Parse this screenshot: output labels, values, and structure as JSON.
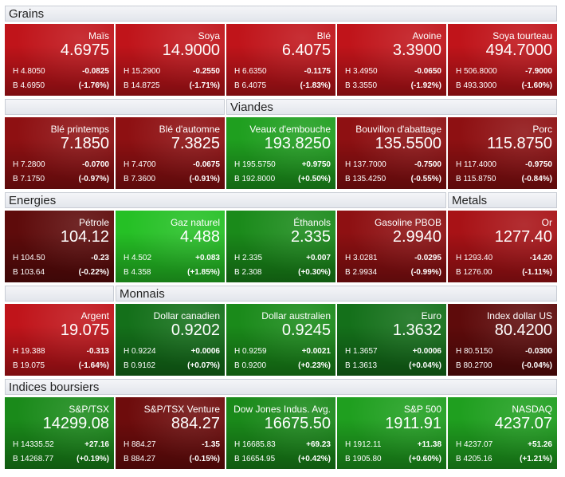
{
  "sections": [
    {
      "headers": [
        "Grains"
      ],
      "tiles": [
        {
          "name": "Maïs",
          "price": "4.6975",
          "high": "H 4.8050",
          "change": "-0.0825",
          "low": "B 4.6950",
          "percent": "(-1.76%)",
          "color": "#c0141a"
        },
        {
          "name": "Soya",
          "price": "14.9000",
          "high": "H 15.2900",
          "change": "-0.2550",
          "low": "B 14.8725",
          "percent": "(-1.71%)",
          "color": "#c0141a"
        },
        {
          "name": "Blé",
          "price": "6.4075",
          "high": "H 6.6350",
          "change": "-0.1175",
          "low": "B 6.4075",
          "percent": "(-1.83%)",
          "color": "#c0141a"
        },
        {
          "name": "Avoine",
          "price": "3.3900",
          "high": "H 3.4950",
          "change": "-0.0650",
          "low": "B 3.3550",
          "percent": "(-1.92%)",
          "color": "#c0141a"
        },
        {
          "name": "Soya tourteau",
          "price": "494.7000",
          "high": "H 506.8000",
          "change": "-7.9000",
          "low": "B 493.3000",
          "percent": "(-1.60%)",
          "color": "#c0141a"
        }
      ]
    },
    {
      "headers": [
        "Viandes"
      ],
      "tiles": [
        {
          "name": "Blé printemps",
          "price": "7.1850",
          "high": "H 7.2800",
          "change": "-0.0700",
          "low": "B 7.1750",
          "percent": "(-0.97%)",
          "color": "#8e1012"
        },
        {
          "name": "Blé d'automne",
          "price": "7.3825",
          "high": "H 7.4700",
          "change": "-0.0675",
          "low": "B 7.3600",
          "percent": "(-0.91%)",
          "color": "#8e1012"
        },
        {
          "name": "Veaux d'embouche",
          "price": "193.8250",
          "high": "H 195.5750",
          "change": "+0.9750",
          "low": "B 192.8000",
          "percent": "(+0.50%)",
          "color": "#1f9f1f"
        },
        {
          "name": "Bouvillon d'abattage",
          "price": "135.5500",
          "high": "H 137.7000",
          "change": "-0.7500",
          "low": "B 135.4250",
          "percent": "(-0.55%)",
          "color": "#8e1012"
        },
        {
          "name": "Porc",
          "price": "115.8750",
          "high": "H 117.4000",
          "change": "-0.9750",
          "low": "B 115.8750",
          "percent": "(-0.84%)",
          "color": "#8e1012"
        }
      ]
    },
    {
      "headers": [
        "Energies",
        "Metals"
      ],
      "tiles": [
        {
          "name": "Pétrole",
          "price": "104.12",
          "high": "H 104.50",
          "change": "-0.23",
          "low": "B 103.64",
          "percent": "(-0.22%)",
          "color": "#5e0b0b"
        },
        {
          "name": "Gaz naturel",
          "price": "4.488",
          "high": "H 4.502",
          "change": "+0.083",
          "low": "B 4.358",
          "percent": "(+1.85%)",
          "color": "#25c025"
        },
        {
          "name": "Éthanols",
          "price": "2.335",
          "high": "H 2.335",
          "change": "+0.007",
          "low": "B 2.308",
          "percent": "(+0.30%)",
          "color": "#1a8a1a"
        },
        {
          "name": "Gasoline PBOB",
          "price": "2.9940",
          "high": "H 3.0281",
          "change": "-0.0295",
          "low": "B 2.9934",
          "percent": "(-0.99%)",
          "color": "#8e1012"
        },
        {
          "name": "Or",
          "price": "1277.40",
          "high": "H 1293.40",
          "change": "-14.20",
          "low": "B 1276.00",
          "percent": "(-1.11%)",
          "color": "#a81216"
        }
      ]
    },
    {
      "headers": [
        "Monnais"
      ],
      "tiles": [
        {
          "name": "Argent",
          "price": "19.075",
          "high": "H 19.388",
          "change": "-0.313",
          "low": "B 19.075",
          "percent": "(-1.64%)",
          "color": "#c0141a"
        },
        {
          "name": "Dollar canadien",
          "price": "0.9202",
          "high": "H 0.9224",
          "change": "+0.0006",
          "low": "B 0.9162",
          "percent": "(+0.07%)",
          "color": "#14701a"
        },
        {
          "name": "Dollar australien",
          "price": "0.9245",
          "high": "H 0.9259",
          "change": "+0.0021",
          "low": "B 0.9200",
          "percent": "(+0.23%)",
          "color": "#1a8a1a"
        },
        {
          "name": "Euro",
          "price": "1.3632",
          "high": "H 1.3657",
          "change": "+0.0006",
          "low": "B 1.3613",
          "percent": "(+0.04%)",
          "color": "#14701a"
        },
        {
          "name": "Index dollar US",
          "price": "80.4200",
          "high": "H 80.5150",
          "change": "-0.0300",
          "low": "B 80.2700",
          "percent": "(-0.04%)",
          "color": "#5e0b0b"
        }
      ]
    },
    {
      "headers": [
        "Indices boursiers"
      ],
      "tiles": [
        {
          "name": "S&P/TSX",
          "price": "14299.08",
          "high": "H 14335.52",
          "change": "+27.16",
          "low": "B 14268.77",
          "percent": "(+0.19%)",
          "color": "#1a8a1a"
        },
        {
          "name": "S&P/TSX Venture",
          "price": "884.27",
          "high": "H 884.27",
          "change": "-1.35",
          "low": "B 884.27",
          "percent": "(-0.15%)",
          "color": "#6e0c0c"
        },
        {
          "name": "Dow Jones Indus. Avg.",
          "price": "16675.50",
          "high": "H 16685.83",
          "change": "+69.23",
          "low": "B 16654.95",
          "percent": "(+0.42%)",
          "color": "#1a8a1a"
        },
        {
          "name": "S&P 500",
          "price": "1911.91",
          "high": "H 1912.11",
          "change": "+11.38",
          "low": "B 1905.80",
          "percent": "(+0.60%)",
          "color": "#1f9f1f"
        },
        {
          "name": "NASDAQ",
          "price": "4237.07",
          "high": "H 4237.07",
          "change": "+51.26",
          "low": "B 4205.16",
          "percent": "(+1.21%)",
          "color": "#1f9f1f"
        }
      ]
    }
  ]
}
